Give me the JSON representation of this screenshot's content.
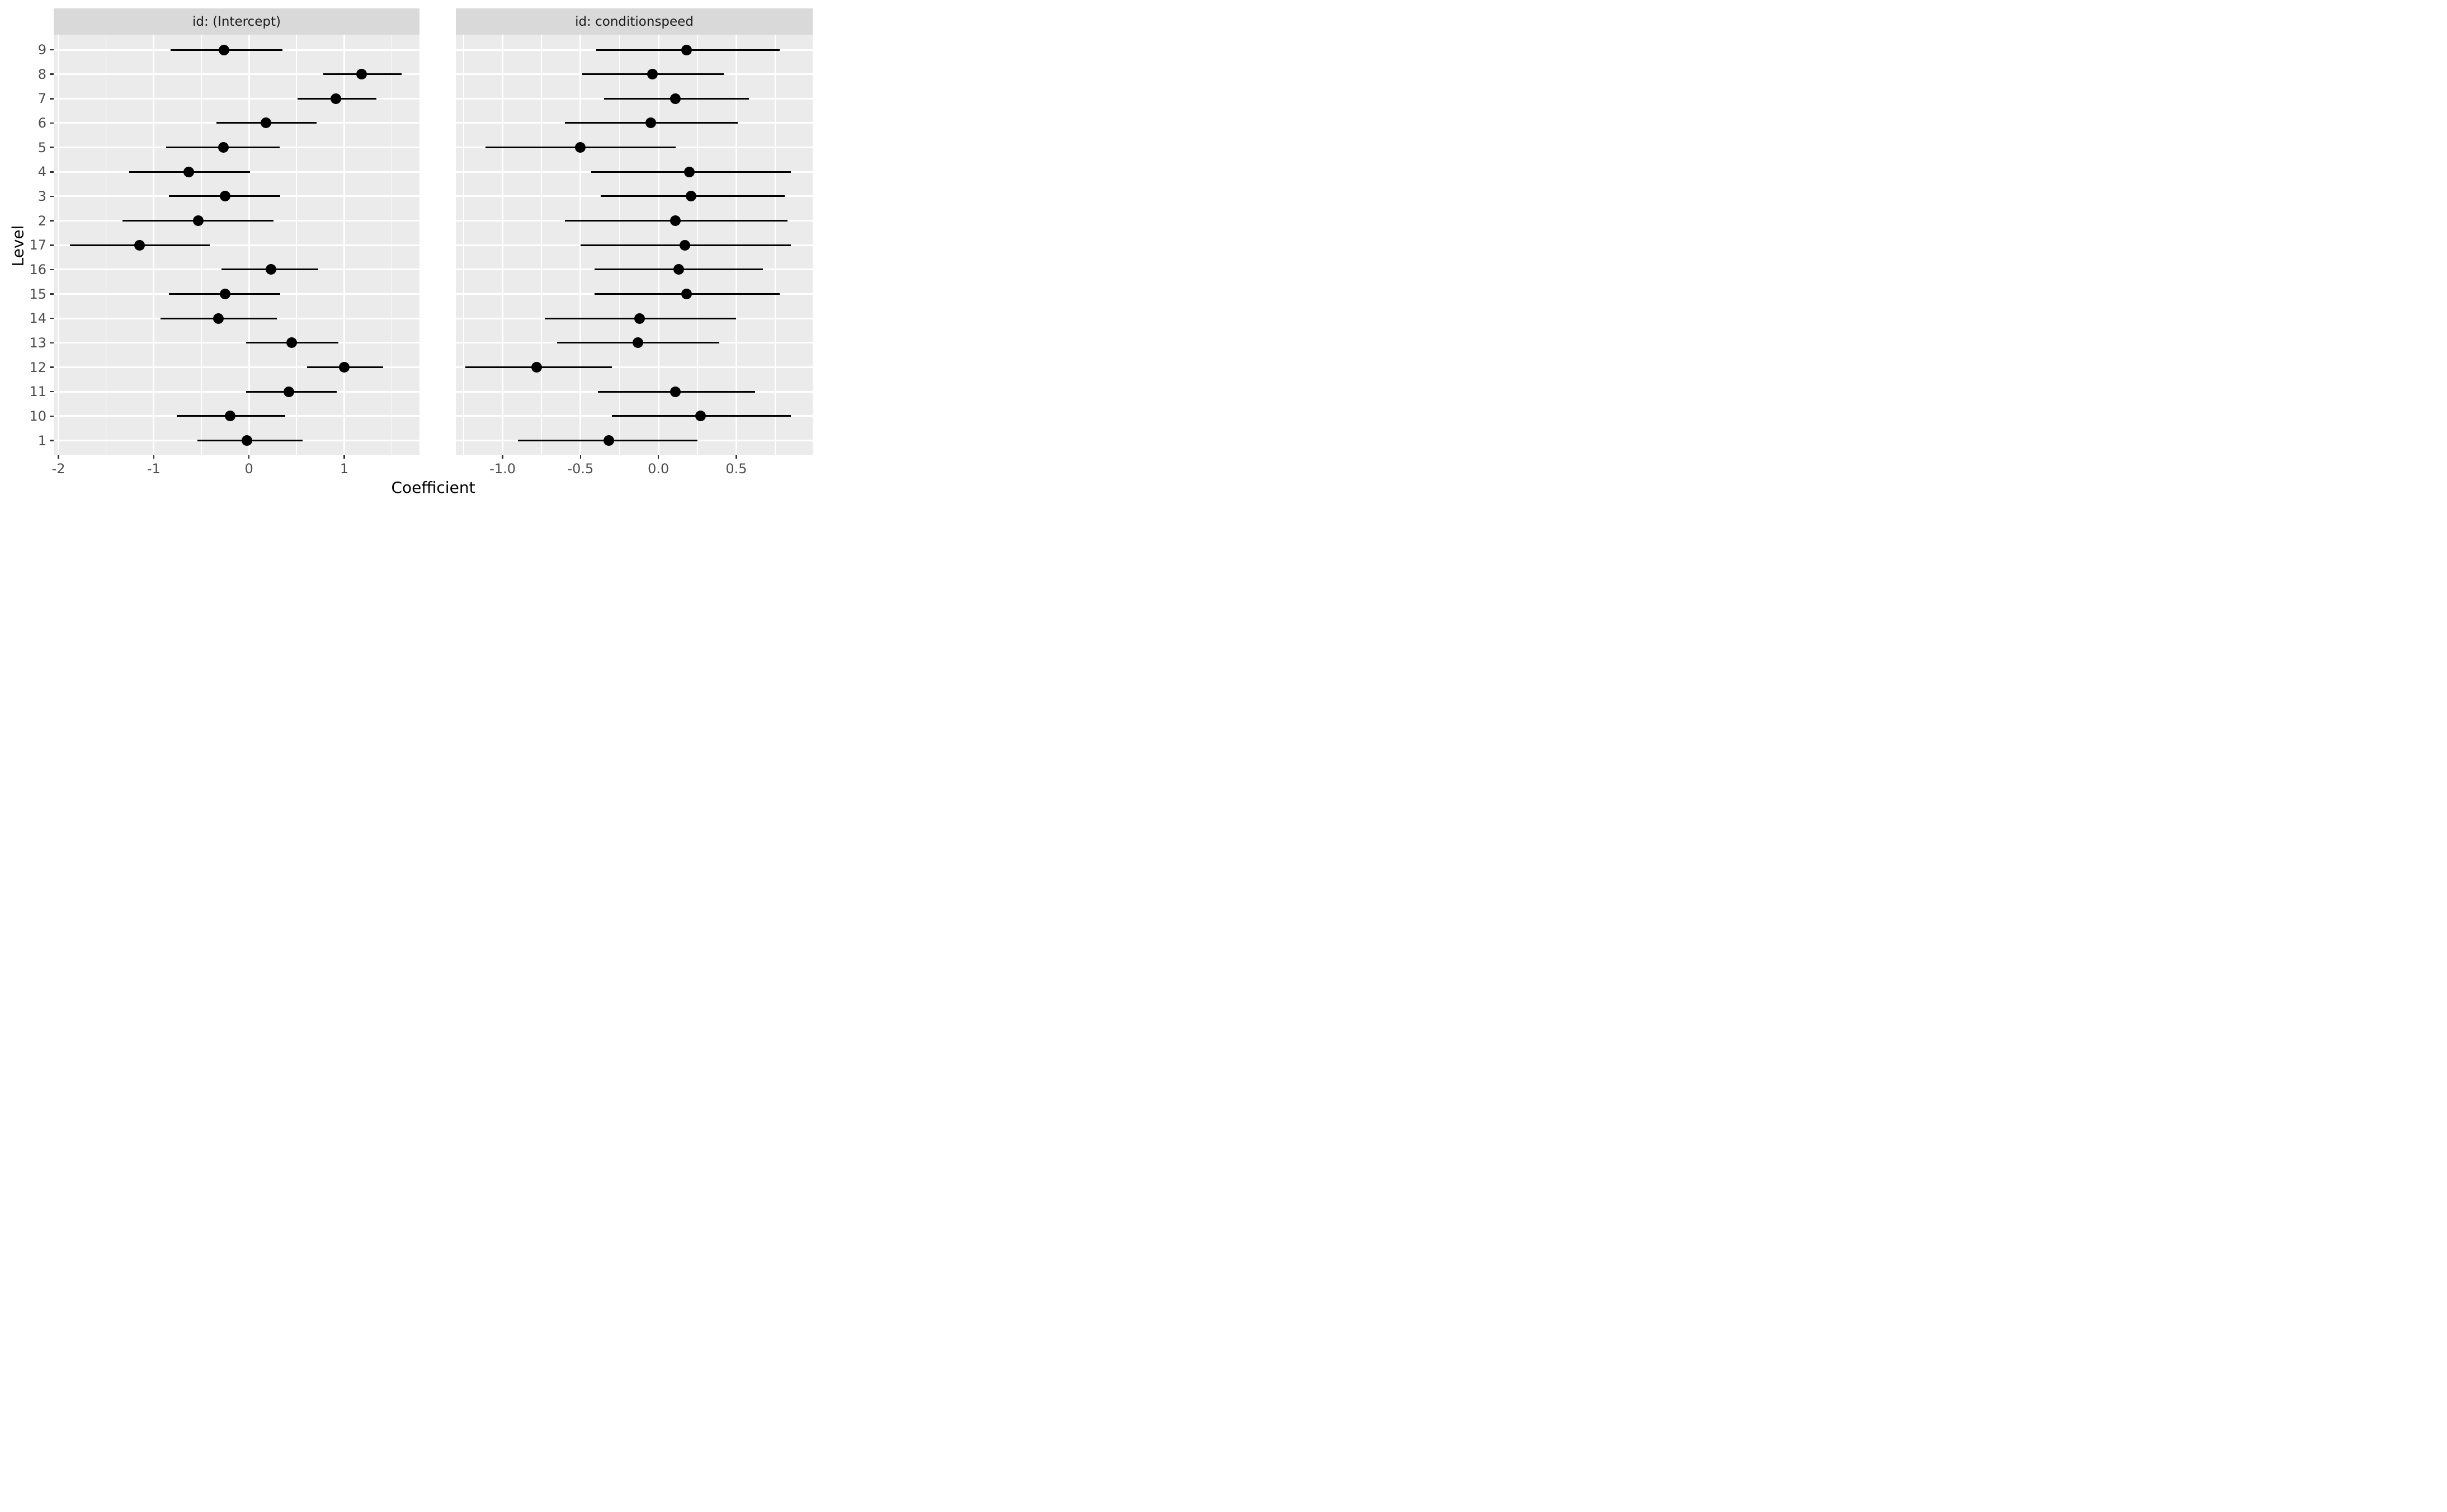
{
  "chart_data": {
    "type": "pointrange",
    "description": "Faceted coefficient (random effects) plot with horizontal interval lines and point estimates per group level",
    "xlabel": "Coefficient",
    "ylabel": "Level",
    "y_categories_top_to_bottom": [
      "9",
      "8",
      "7",
      "6",
      "5",
      "4",
      "3",
      "2",
      "17",
      "16",
      "15",
      "14",
      "13",
      "12",
      "11",
      "10",
      "1"
    ],
    "grid": "on",
    "legend": "none",
    "facets": [
      {
        "label": "id: (Intercept)",
        "xlim": [
          -2.05,
          1.79
        ],
        "x_breaks": [
          -2,
          -1,
          0,
          1
        ],
        "x_tick_labels": [
          "-2",
          "-1",
          "0",
          "1"
        ],
        "x_minor_breaks": [
          -1.5,
          -0.5,
          0.5,
          1.5
        ],
        "estimate": [
          -0.26,
          1.18,
          0.91,
          0.18,
          -0.27,
          -0.63,
          -0.25,
          -0.53,
          -1.15,
          0.23,
          -0.25,
          -0.32,
          0.45,
          1.0,
          0.42,
          -0.2,
          -0.02
        ],
        "lower": [
          -0.82,
          0.78,
          0.51,
          -0.34,
          -0.87,
          -1.26,
          -0.84,
          -1.33,
          -1.88,
          -0.29,
          -0.84,
          -0.93,
          -0.03,
          0.61,
          -0.03,
          -0.76,
          -0.54
        ],
        "upper": [
          0.35,
          1.6,
          1.34,
          0.71,
          0.32,
          0.01,
          0.33,
          0.26,
          -0.41,
          0.73,
          0.33,
          0.29,
          0.94,
          1.41,
          0.92,
          0.38,
          0.56
        ]
      },
      {
        "label": "id: conditionspeed",
        "xlim": [
          -1.3,
          0.99
        ],
        "x_breaks": [
          -1.0,
          -0.5,
          0.0,
          0.5
        ],
        "x_tick_labels": [
          "-1.0",
          "-0.5",
          "0.0",
          "0.5"
        ],
        "x_minor_breaks": [
          -1.25,
          -0.75,
          -0.25,
          0.25,
          0.75
        ],
        "estimate": [
          0.18,
          -0.04,
          0.11,
          -0.05,
          -0.5,
          0.2,
          0.21,
          0.11,
          0.17,
          0.13,
          0.18,
          -0.12,
          -0.13,
          -0.78,
          0.11,
          0.27,
          -0.32
        ],
        "lower": [
          -0.4,
          -0.49,
          -0.35,
          -0.6,
          -1.11,
          -0.43,
          -0.37,
          -0.6,
          -0.5,
          -0.41,
          -0.41,
          -0.73,
          -0.65,
          -1.24,
          -0.39,
          -0.3,
          -0.9
        ],
        "upper": [
          0.78,
          0.42,
          0.58,
          0.51,
          0.11,
          0.85,
          0.81,
          0.83,
          0.85,
          0.67,
          0.78,
          0.5,
          0.39,
          -0.3,
          0.62,
          0.85,
          0.25
        ]
      }
    ],
    "style": {
      "panel_bg": "#ebebeb",
      "strip_bg": "#d9d9d9",
      "grid_color": "#ffffff",
      "data_color": "#000000",
      "axis_text_color": "#4d4d4d",
      "tick_mark_color": "#333333",
      "title_color": "#000000"
    }
  }
}
